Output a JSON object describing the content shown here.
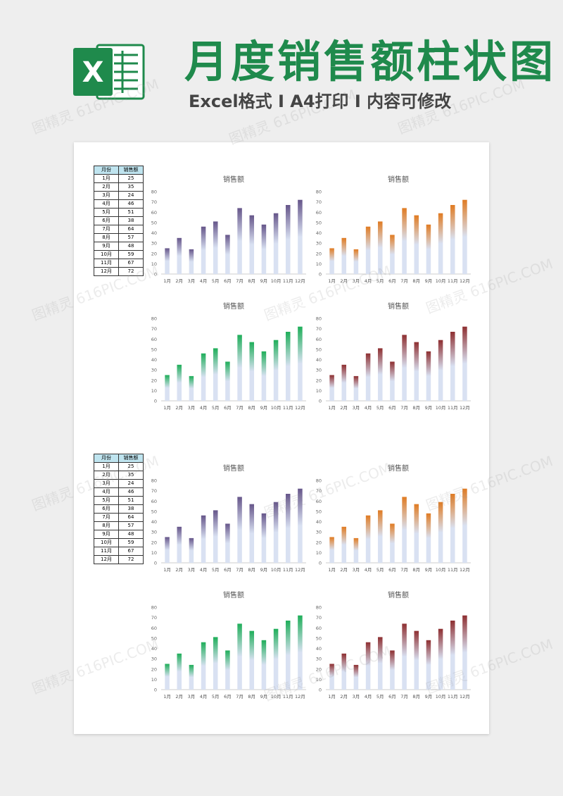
{
  "header": {
    "logo_letter": "X",
    "title": "月度销售额柱状图",
    "subtitle": "Excel格式 I A4打印 I 内容可修改",
    "accent_color": "#1f8a4c"
  },
  "watermark": "图精灵 616PIC.COM",
  "tables": [
    {
      "headers": [
        "月份",
        "销售额"
      ],
      "rows": [
        [
          "1月",
          "25"
        ],
        [
          "2月",
          "35"
        ],
        [
          "3月",
          "24"
        ],
        [
          "4月",
          "46"
        ],
        [
          "5月",
          "51"
        ],
        [
          "6月",
          "38"
        ],
        [
          "7月",
          "64"
        ],
        [
          "8月",
          "57"
        ],
        [
          "9月",
          "48"
        ],
        [
          "10月",
          "59"
        ],
        [
          "11月",
          "67"
        ],
        [
          "12月",
          "72"
        ]
      ]
    },
    {
      "headers": [
        "月份",
        "销售额"
      ],
      "rows": [
        [
          "1月",
          "25"
        ],
        [
          "2月",
          "35"
        ],
        [
          "3月",
          "24"
        ],
        [
          "4月",
          "46"
        ],
        [
          "5月",
          "51"
        ],
        [
          "6月",
          "38"
        ],
        [
          "7月",
          "64"
        ],
        [
          "8月",
          "57"
        ],
        [
          "9月",
          "48"
        ],
        [
          "10月",
          "59"
        ],
        [
          "11月",
          "67"
        ],
        [
          "12月",
          "72"
        ]
      ]
    }
  ],
  "chart_data": [
    {
      "type": "bar",
      "title": "销售额",
      "categories": [
        "1月",
        "2月",
        "3月",
        "4月",
        "5月",
        "6月",
        "7月",
        "8月",
        "9月",
        "10月",
        "11月",
        "12月"
      ],
      "values": [
        25,
        35,
        24,
        46,
        51,
        38,
        64,
        57,
        48,
        59,
        67,
        72
      ],
      "ylim": [
        0,
        80
      ],
      "yticks": [
        0,
        10,
        20,
        30,
        40,
        50,
        60,
        70,
        80
      ],
      "grid": false,
      "gradient": {
        "top": "#66568a",
        "bottom": "#d9e1f2"
      }
    },
    {
      "type": "bar",
      "title": "销售额",
      "categories": [
        "1月",
        "2月",
        "3月",
        "4月",
        "5月",
        "6月",
        "7月",
        "8月",
        "9月",
        "10月",
        "11月",
        "12月"
      ],
      "values": [
        25,
        35,
        24,
        46,
        51,
        38,
        64,
        57,
        48,
        59,
        67,
        72
      ],
      "ylim": [
        0,
        80
      ],
      "yticks": [
        0,
        10,
        20,
        30,
        40,
        50,
        60,
        70,
        80
      ],
      "grid": false,
      "gradient": {
        "top": "#e07b22",
        "bottom": "#d9e1f2"
      }
    },
    {
      "type": "bar",
      "title": "销售额",
      "categories": [
        "1月",
        "2月",
        "3月",
        "4月",
        "5月",
        "6月",
        "7月",
        "8月",
        "9月",
        "10月",
        "11月",
        "12月"
      ],
      "values": [
        25,
        35,
        24,
        46,
        51,
        38,
        64,
        57,
        48,
        59,
        67,
        72
      ],
      "ylim": [
        0,
        80
      ],
      "yticks": [
        0,
        10,
        20,
        30,
        40,
        50,
        60,
        70,
        80
      ],
      "grid": false,
      "gradient": {
        "top": "#1fae5a",
        "bottom": "#d9e1f2"
      }
    },
    {
      "type": "bar",
      "title": "销售额",
      "categories": [
        "1月",
        "2月",
        "3月",
        "4月",
        "5月",
        "6月",
        "7月",
        "8月",
        "9月",
        "10月",
        "11月",
        "12月"
      ],
      "values": [
        25,
        35,
        24,
        46,
        51,
        38,
        64,
        57,
        48,
        59,
        67,
        72
      ],
      "ylim": [
        0,
        80
      ],
      "yticks": [
        0,
        10,
        20,
        30,
        40,
        50,
        60,
        70,
        80
      ],
      "grid": false,
      "gradient": {
        "top": "#8e2f31",
        "bottom": "#d9e1f2"
      }
    },
    {
      "type": "bar",
      "title": "销售额",
      "categories": [
        "1月",
        "2月",
        "3月",
        "4月",
        "5月",
        "6月",
        "7月",
        "8月",
        "9月",
        "10月",
        "11月",
        "12月"
      ],
      "values": [
        25,
        35,
        24,
        46,
        51,
        38,
        64,
        57,
        48,
        59,
        67,
        72
      ],
      "ylim": [
        0,
        80
      ],
      "yticks": [
        0,
        10,
        20,
        30,
        40,
        50,
        60,
        70,
        80
      ],
      "grid": false,
      "gradient": {
        "top": "#66568a",
        "bottom": "#d9e1f2"
      }
    },
    {
      "type": "bar",
      "title": "销售额",
      "categories": [
        "1月",
        "2月",
        "3月",
        "4月",
        "5月",
        "6月",
        "7月",
        "8月",
        "9月",
        "10月",
        "11月",
        "12月"
      ],
      "values": [
        25,
        35,
        24,
        46,
        51,
        38,
        64,
        57,
        48,
        59,
        67,
        72
      ],
      "ylim": [
        0,
        80
      ],
      "yticks": [
        0,
        10,
        20,
        30,
        40,
        50,
        60,
        70,
        80
      ],
      "grid": false,
      "gradient": {
        "top": "#e07b22",
        "bottom": "#d9e1f2"
      }
    },
    {
      "type": "bar",
      "title": "销售额",
      "categories": [
        "1月",
        "2月",
        "3月",
        "4月",
        "5月",
        "6月",
        "7月",
        "8月",
        "9月",
        "10月",
        "11月",
        "12月"
      ],
      "values": [
        25,
        35,
        24,
        46,
        51,
        38,
        64,
        57,
        48,
        59,
        67,
        72
      ],
      "ylim": [
        0,
        80
      ],
      "yticks": [
        0,
        10,
        20,
        30,
        40,
        50,
        60,
        70,
        80
      ],
      "grid": false,
      "gradient": {
        "top": "#1fae5a",
        "bottom": "#d9e1f2"
      }
    },
    {
      "type": "bar",
      "title": "销售额",
      "categories": [
        "1月",
        "2月",
        "3月",
        "4月",
        "5月",
        "6月",
        "7月",
        "8月",
        "9月",
        "10月",
        "11月",
        "12月"
      ],
      "values": [
        25,
        35,
        24,
        46,
        51,
        38,
        64,
        57,
        48,
        59,
        67,
        72
      ],
      "ylim": [
        0,
        80
      ],
      "yticks": [
        0,
        10,
        20,
        30,
        40,
        50,
        60,
        70,
        80
      ],
      "grid": false,
      "gradient": {
        "top": "#8e2f31",
        "bottom": "#d9e1f2"
      }
    }
  ]
}
